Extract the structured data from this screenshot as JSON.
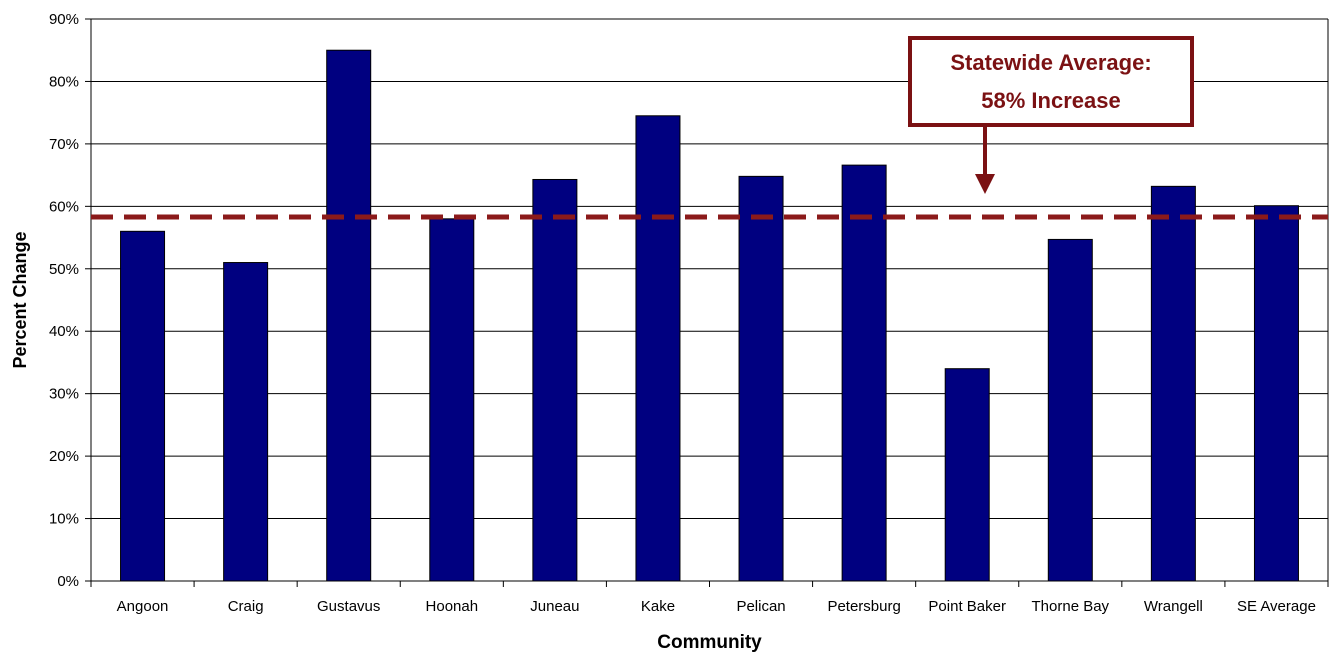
{
  "chart_data": {
    "type": "bar",
    "categories": [
      "Angoon",
      "Craig",
      "Gustavus",
      "Hoonah",
      "Juneau",
      "Kake",
      "Pelican",
      "Petersburg",
      "Point Baker",
      "Thorne Bay",
      "Wrangell",
      "SE Average"
    ],
    "values": [
      56,
      51,
      85,
      58,
      64.3,
      74.5,
      64.8,
      66.6,
      34,
      54.7,
      63.2,
      60.1
    ],
    "xlabel": "Community",
    "ylabel": "Percent Change",
    "ylim": [
      0,
      90
    ],
    "yticks": [
      0,
      10,
      20,
      30,
      40,
      50,
      60,
      70,
      80,
      90
    ],
    "ytick_labels": [
      "0%",
      "10%",
      "20%",
      "30%",
      "40%",
      "50%",
      "60%",
      "70%",
      "80%",
      "90%"
    ],
    "grid": true,
    "reference_line": {
      "value": 58.3,
      "style": "dashed"
    },
    "annotation": {
      "line1": "Statewide Average:",
      "line2": "58% Increase"
    },
    "colors": {
      "bar": "#000080",
      "reference": "#8B1A1A",
      "annotation": "#7B1113",
      "grid": "#000000"
    }
  }
}
